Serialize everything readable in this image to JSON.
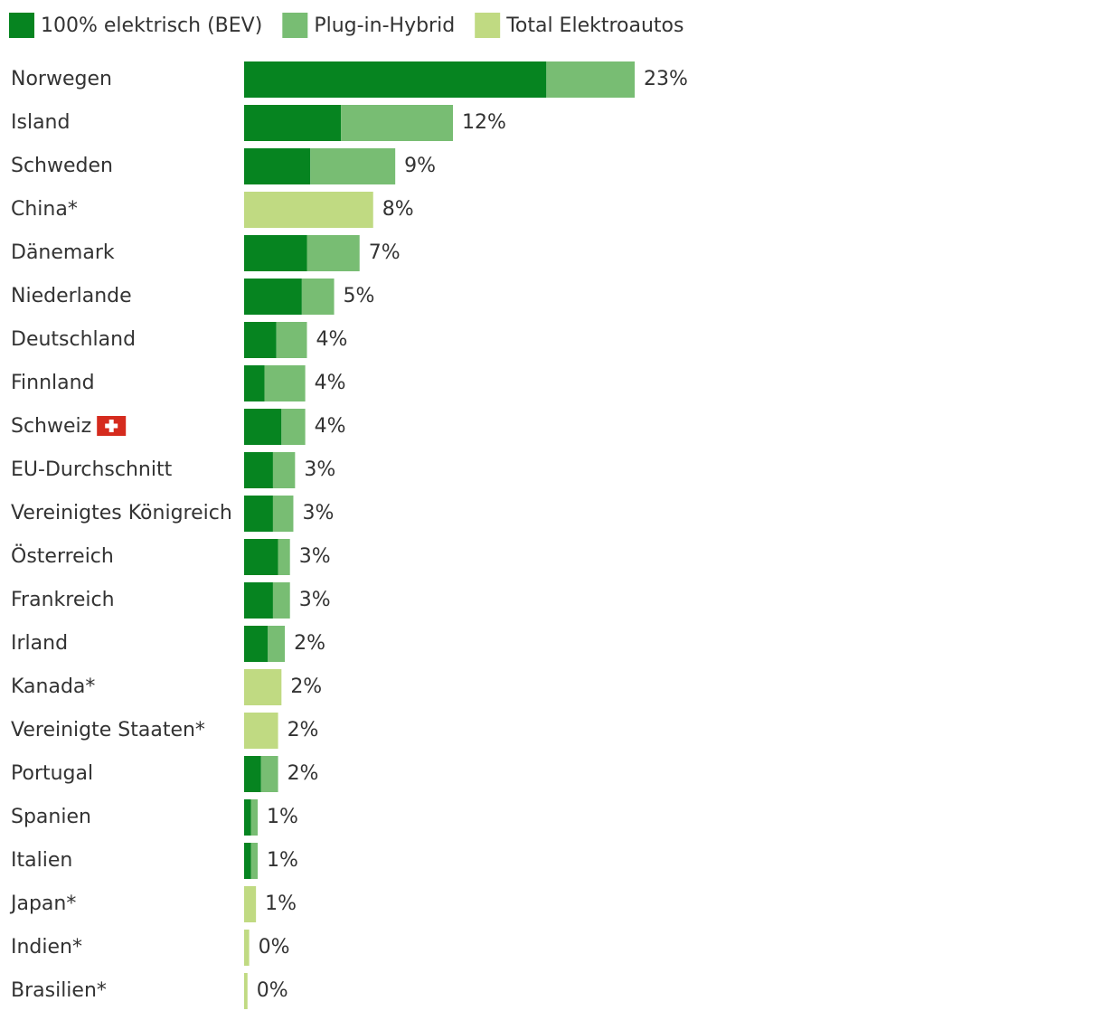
{
  "chart_data": {
    "type": "stacked-bar-horizontal",
    "categories": [
      "Norwegen",
      "Island",
      "Schweden",
      "China*",
      "Dänemark",
      "Niederlande",
      "Deutschland",
      "Finnland",
      "Schweiz",
      "EU-Durchschnitt",
      "Vereinigtes Königreich",
      "Österreich",
      "Frankreich",
      "Irland",
      "Kanada*",
      "Vereinigte Staaten*",
      "Portugal",
      "Spanien",
      "Italien",
      "Japan*",
      "Indien*",
      "Brasilien*"
    ],
    "series": [
      {
        "name": "100% elektrisch (BEV)",
        "color": "#068420",
        "values": [
          17.8,
          5.7,
          3.9,
          null,
          3.7,
          3.4,
          1.9,
          1.2,
          2.2,
          1.7,
          1.7,
          2.0,
          1.7,
          1.4,
          null,
          null,
          1.0,
          0.4,
          0.4,
          null,
          null,
          null
        ]
      },
      {
        "name": "Plug-in-Hybrid",
        "color": "#78bd73",
        "values": [
          5.2,
          6.6,
          5.0,
          null,
          3.1,
          1.9,
          1.8,
          2.4,
          1.4,
          1.3,
          1.2,
          0.7,
          1.0,
          1.0,
          null,
          null,
          1.0,
          0.4,
          0.4,
          null,
          null,
          null
        ]
      },
      {
        "name": "Total Elektroautos",
        "color": "#c0da82",
        "values": [
          null,
          null,
          null,
          7.6,
          null,
          null,
          null,
          null,
          null,
          null,
          null,
          null,
          null,
          null,
          2.2,
          2.0,
          null,
          null,
          null,
          0.7,
          0.3,
          0.2
        ]
      }
    ],
    "totals": [
      23.0,
      12.3,
      8.9,
      7.6,
      6.8,
      5.3,
      3.7,
      3.6,
      3.6,
      3.0,
      2.9,
      2.7,
      2.7,
      2.4,
      2.2,
      2.0,
      2.0,
      0.8,
      0.8,
      0.7,
      0.3,
      0.2
    ],
    "value_labels": [
      "23%",
      "12%",
      "9%",
      "8%",
      "7%",
      "5%",
      "4%",
      "4%",
      "4%",
      "3%",
      "3%",
      "3%",
      "3%",
      "2%",
      "2%",
      "2%",
      "2%",
      "1%",
      "1%",
      "1%",
      "0%",
      "0%"
    ],
    "xlim": [
      0,
      23
    ]
  }
}
